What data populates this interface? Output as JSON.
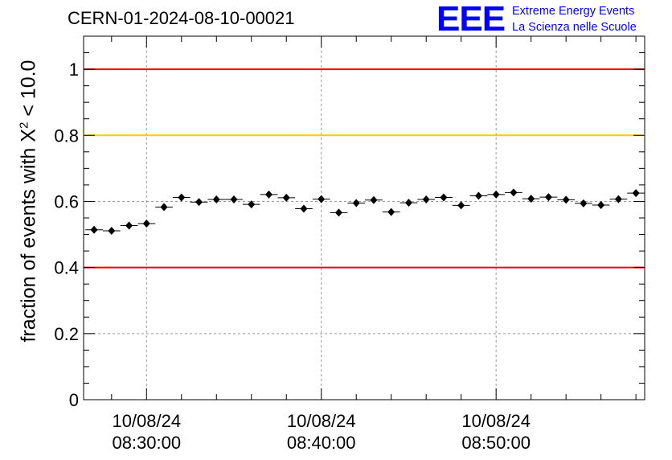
{
  "header": {
    "title": "CERN-01-2024-08-10-00021",
    "logo_letters": "EEE",
    "logo_line1": "Extreme Energy Events",
    "logo_line2": "La Scienza nelle Scuole"
  },
  "axis": {
    "ylabel_prefix": "fraction of events with ",
    "ylabel_symbol": "X",
    "ylabel_power": "2",
    "ylabel_suffix": " < 10.0"
  },
  "colors": {
    "red_line": "#ff0000",
    "yellow_line": "#ffcc00",
    "logo": "#0000ff"
  },
  "chart_data": {
    "type": "scatter",
    "x_unit": "minutes after 08:30:00 on 10/08/24",
    "xlim": [
      -3.6,
      28.5
    ],
    "ylim": [
      0,
      1.1
    ],
    "yticks": [
      0,
      0.2,
      0.4,
      0.6,
      0.8,
      1
    ],
    "ytick_labels": [
      "0",
      "0.2",
      "0.4",
      "0.6",
      "0.8",
      "1"
    ],
    "xticks": [
      {
        "value": 0,
        "date": "10/08/24",
        "time": "08:30:00"
      },
      {
        "value": 10,
        "date": "10/08/24",
        "time": "08:40:00"
      },
      {
        "value": 20,
        "date": "10/08/24",
        "time": "08:50:00"
      }
    ],
    "grid": true,
    "reference_lines": [
      {
        "y": 1.0,
        "color": "#ff0000"
      },
      {
        "y": 0.8,
        "color": "#ffcc00"
      },
      {
        "y": 0.4,
        "color": "#ff0000"
      }
    ],
    "bin_width_min": 1,
    "x": [
      -3,
      -2,
      -1,
      0,
      1,
      2,
      3,
      4,
      5,
      6,
      7,
      8,
      9,
      10,
      11,
      12,
      13,
      14,
      15,
      16,
      17,
      18,
      19,
      20,
      21,
      22,
      23,
      24,
      25,
      26,
      27,
      28
    ],
    "y": [
      0.514,
      0.511,
      0.527,
      0.533,
      0.583,
      0.612,
      0.598,
      0.606,
      0.606,
      0.591,
      0.621,
      0.611,
      0.578,
      0.607,
      0.566,
      0.595,
      0.604,
      0.568,
      0.596,
      0.606,
      0.612,
      0.588,
      0.617,
      0.621,
      0.627,
      0.608,
      0.613,
      0.605,
      0.594,
      0.589,
      0.607,
      0.625
    ],
    "yerr": 0.009
  }
}
